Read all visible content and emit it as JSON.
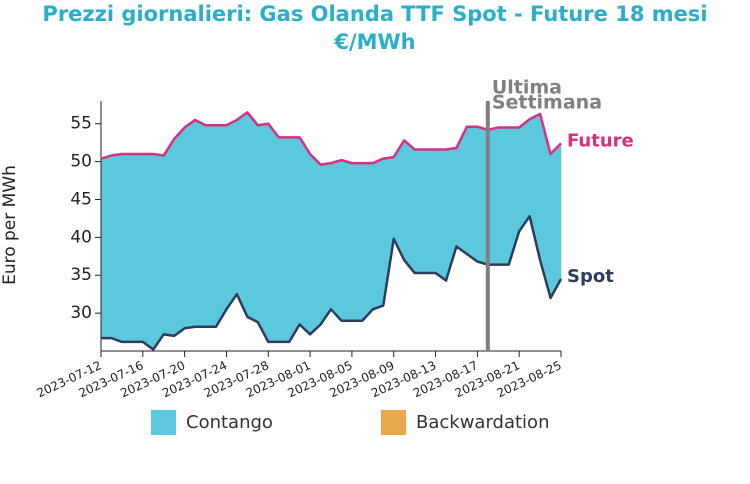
{
  "chart_data": {
    "type": "line",
    "title": "Prezzi giornalieri: Gas Olanda TTF Spot - Future 18 mesi",
    "subtitle": "€/MWh",
    "y_label": "Euro per MWh",
    "x": [
      "2023-07-12",
      "2023-07-13",
      "2023-07-14",
      "2023-07-15",
      "2023-07-16",
      "2023-07-17",
      "2023-07-18",
      "2023-07-19",
      "2023-07-20",
      "2023-07-21",
      "2023-07-22",
      "2023-07-23",
      "2023-07-24",
      "2023-07-25",
      "2023-07-26",
      "2023-07-27",
      "2023-07-28",
      "2023-07-29",
      "2023-07-30",
      "2023-07-31",
      "2023-08-01",
      "2023-08-02",
      "2023-08-03",
      "2023-08-04",
      "2023-08-05",
      "2023-08-06",
      "2023-08-07",
      "2023-08-08",
      "2023-08-09",
      "2023-08-10",
      "2023-08-11",
      "2023-08-12",
      "2023-08-13",
      "2023-08-14",
      "2023-08-15",
      "2023-08-16",
      "2023-08-17",
      "2023-08-18",
      "2023-08-19",
      "2023-08-20",
      "2023-08-21",
      "2023-08-22",
      "2023-08-23",
      "2023-08-24",
      "2023-08-25"
    ],
    "series": [
      {
        "name": "Future",
        "color": "#d6307f",
        "values": [
          50.4,
          50.8,
          51.0,
          51.0,
          51.0,
          51.0,
          50.8,
          53.0,
          54.5,
          55.5,
          54.8,
          54.8,
          54.8,
          55.5,
          56.5,
          54.8,
          55.0,
          53.2,
          53.2,
          53.2,
          51.0,
          49.6,
          49.8,
          50.2,
          49.8,
          49.8,
          49.8,
          50.4,
          50.6,
          52.8,
          51.6,
          51.6,
          51.6,
          51.6,
          51.8,
          54.6,
          54.6,
          54.2,
          54.5,
          54.5,
          54.5,
          55.6,
          56.3,
          51.0,
          52.4
        ]
      },
      {
        "name": "Spot",
        "color": "#2b3d5e",
        "values": [
          26.7,
          26.7,
          26.2,
          26.2,
          26.2,
          25.2,
          27.2,
          27.0,
          28.0,
          28.2,
          28.2,
          28.2,
          30.5,
          32.5,
          29.5,
          28.8,
          26.2,
          26.2,
          26.2,
          28.5,
          27.2,
          28.5,
          30.5,
          29.0,
          29.0,
          29.0,
          30.5,
          31.0,
          39.8,
          37.0,
          35.3,
          35.3,
          35.3,
          34.3,
          38.8,
          37.8,
          36.8,
          36.4,
          36.4,
          36.4,
          40.8,
          42.8,
          37.0,
          32.0,
          34.5
        ]
      }
    ],
    "fill_legend": [
      {
        "name": "Contango",
        "color": "#5bc8dd"
      },
      {
        "name": "Backwardation",
        "color": "#e8a94b"
      }
    ],
    "annotation": {
      "x": "2023-08-18",
      "lines": [
        "Ultima",
        "Settimana"
      ],
      "color": "#808080"
    },
    "xlim": [
      "2023-07-12",
      "2023-08-25"
    ],
    "xticks": [
      "2023-07-12",
      "2023-07-16",
      "2023-07-20",
      "2023-07-24",
      "2023-07-28",
      "2023-08-01",
      "2023-08-05",
      "2023-08-09",
      "2023-08-13",
      "2023-08-17",
      "2023-08-21",
      "2023-08-25"
    ],
    "ylim": [
      25,
      58
    ],
    "yticks": [
      30,
      35,
      40,
      45,
      50,
      55
    ]
  }
}
